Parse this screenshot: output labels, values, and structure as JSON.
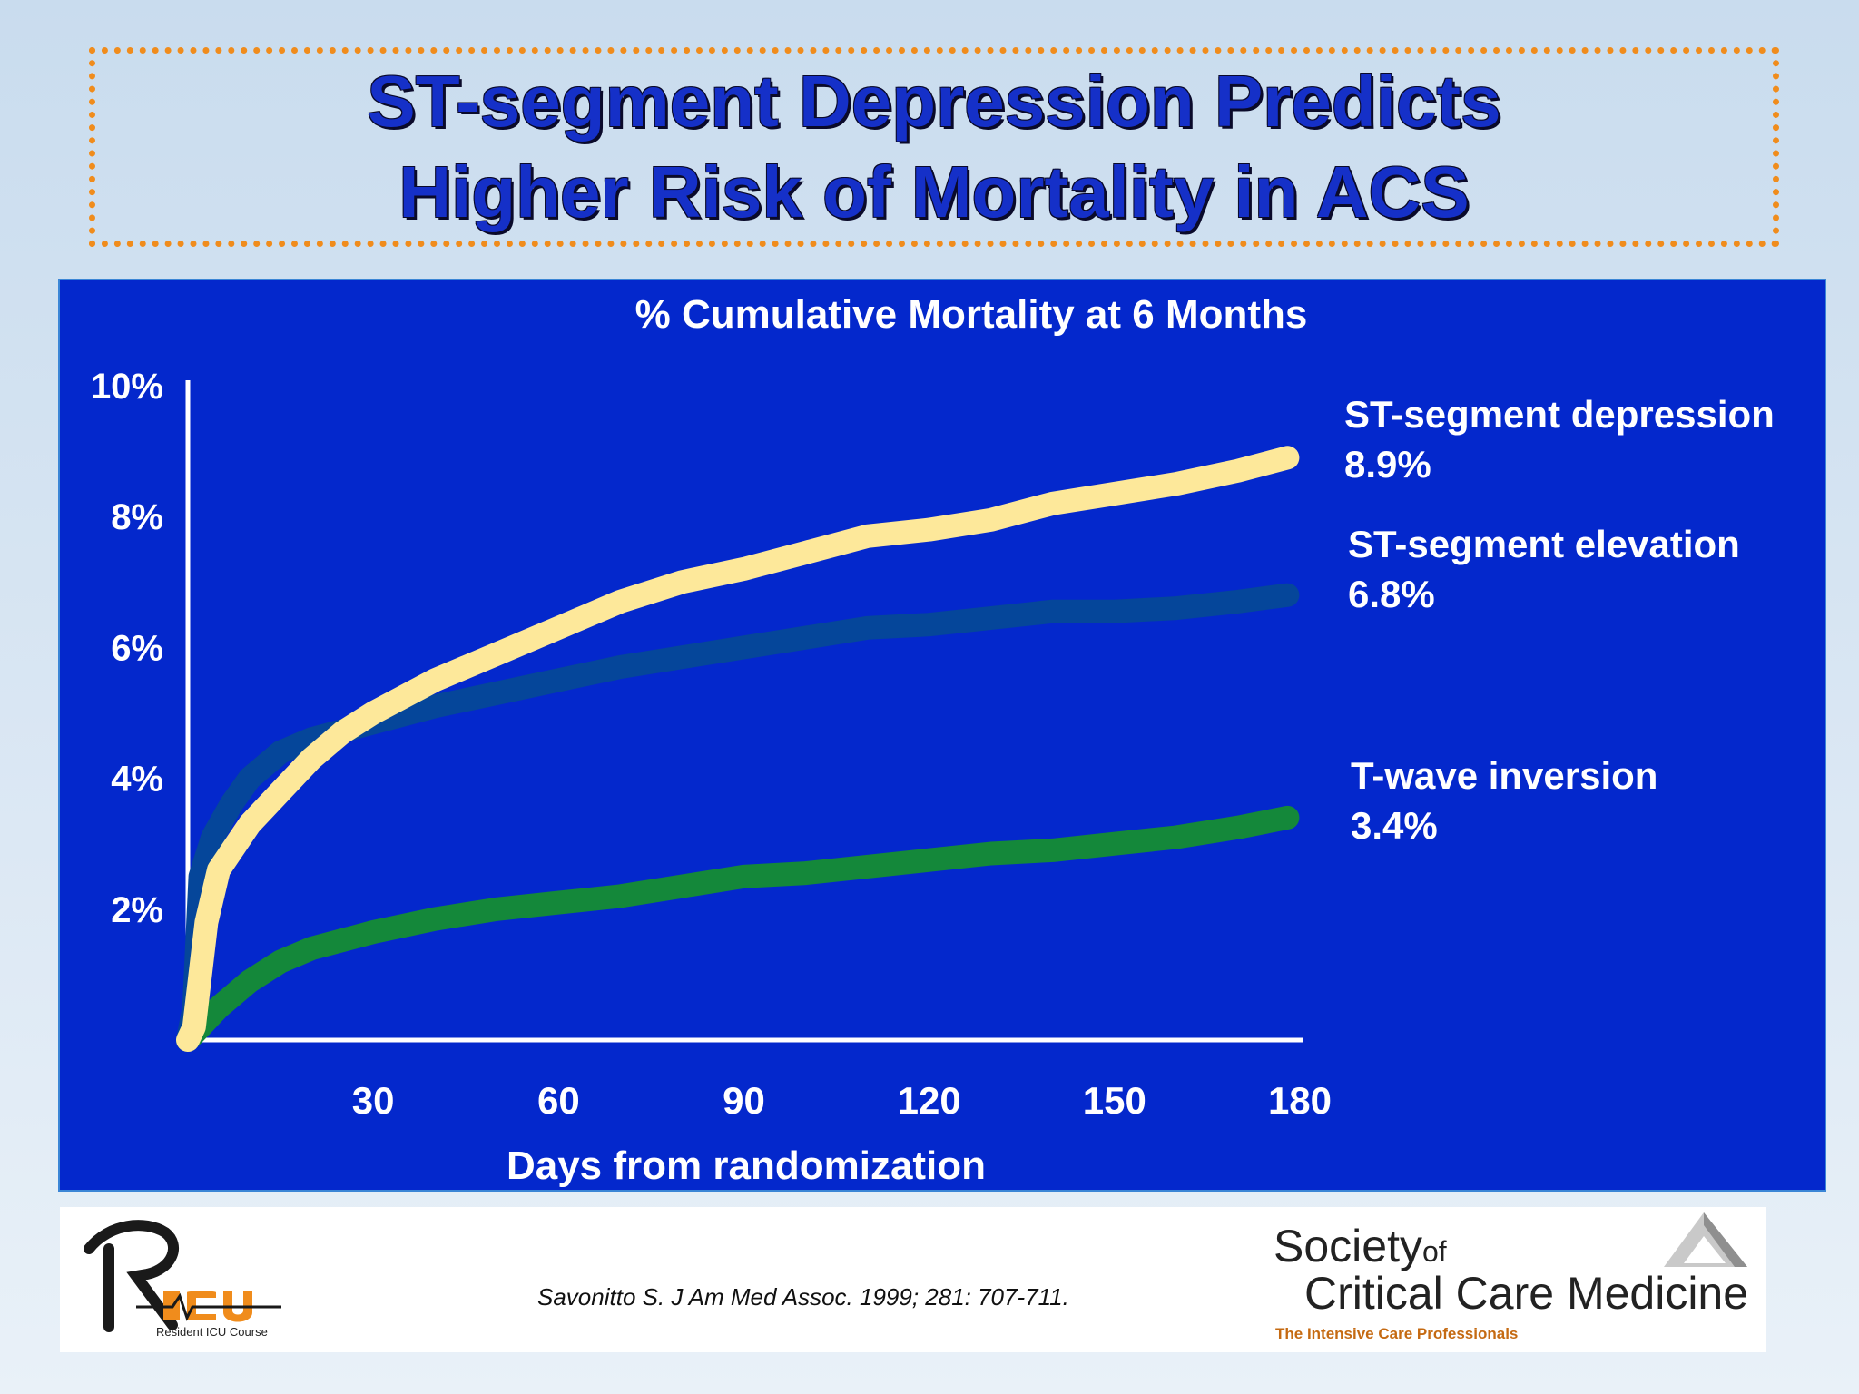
{
  "slide": {
    "title_line1": "ST-segment Depression Predicts",
    "title_line2": "Higher Risk of Mortality in ACS",
    "citation": "Savonitto S. J Am Med Assoc. 1999; 281: 707-711."
  },
  "logos": {
    "ricu_sub": "Resident ICU Course",
    "sccm_society": "Society",
    "sccm_of": "of",
    "sccm_name": "Critical Care Medicine",
    "sccm_tagline": "The Intensive Care Professionals"
  },
  "colors": {
    "panel_background": "#0428cc",
    "title_text": "#1530c8",
    "title_border": "#f08c1c",
    "st_depression": "#fde89a",
    "st_elevation": "#05469a",
    "t_wave": "#14883a"
  },
  "chart_data": {
    "type": "line",
    "title": "% Cumulative Mortality at 6 Months",
    "xlabel": "Days from randomization",
    "ylabel": "",
    "xlim": [
      0,
      180
    ],
    "ylim": [
      0,
      10
    ],
    "x_ticks": [
      "30",
      "60",
      "90",
      "120",
      "150",
      "180"
    ],
    "x_tick_values": [
      30,
      60,
      90,
      120,
      150,
      180
    ],
    "y_ticks": [
      "10%",
      "8%",
      "6%",
      "4%",
      "2%"
    ],
    "y_tick_values": [
      10,
      8,
      6,
      4,
      2
    ],
    "grid": false,
    "series": [
      {
        "name": "ST-segment depression",
        "end_label": "8.9%",
        "color": "#fde89a",
        "x": [
          1,
          3,
          5,
          10,
          15,
          20,
          25,
          30,
          40,
          50,
          60,
          70,
          80,
          90,
          100,
          110,
          120,
          130,
          140,
          150,
          160,
          170,
          178
        ],
        "y": [
          0.2,
          1.8,
          2.6,
          3.3,
          3.8,
          4.3,
          4.7,
          5.0,
          5.5,
          5.9,
          6.3,
          6.7,
          7.0,
          7.2,
          7.45,
          7.7,
          7.8,
          7.95,
          8.2,
          8.35,
          8.5,
          8.7,
          8.9
        ]
      },
      {
        "name": "ST-segment elevation",
        "end_label": "6.8%",
        "color": "#05469a",
        "x": [
          1,
          2,
          4,
          7,
          10,
          15,
          20,
          30,
          40,
          50,
          60,
          70,
          80,
          90,
          100,
          110,
          120,
          130,
          140,
          150,
          160,
          170,
          178
        ],
        "y": [
          0.5,
          2.5,
          3.1,
          3.6,
          4.0,
          4.4,
          4.6,
          4.85,
          5.1,
          5.3,
          5.5,
          5.7,
          5.85,
          6.0,
          6.15,
          6.3,
          6.35,
          6.45,
          6.55,
          6.55,
          6.6,
          6.7,
          6.8
        ]
      },
      {
        "name": "T-wave inversion",
        "end_label": "3.4%",
        "color": "#14883a",
        "x": [
          2,
          5,
          10,
          15,
          20,
          30,
          40,
          50,
          60,
          70,
          80,
          90,
          100,
          110,
          120,
          130,
          140,
          150,
          160,
          170,
          178
        ],
        "y": [
          0.2,
          0.5,
          0.9,
          1.2,
          1.4,
          1.65,
          1.85,
          2.0,
          2.1,
          2.2,
          2.35,
          2.5,
          2.55,
          2.65,
          2.75,
          2.85,
          2.9,
          3.0,
          3.1,
          3.25,
          3.4
        ]
      }
    ],
    "legend": "right, end-of-line labels"
  }
}
